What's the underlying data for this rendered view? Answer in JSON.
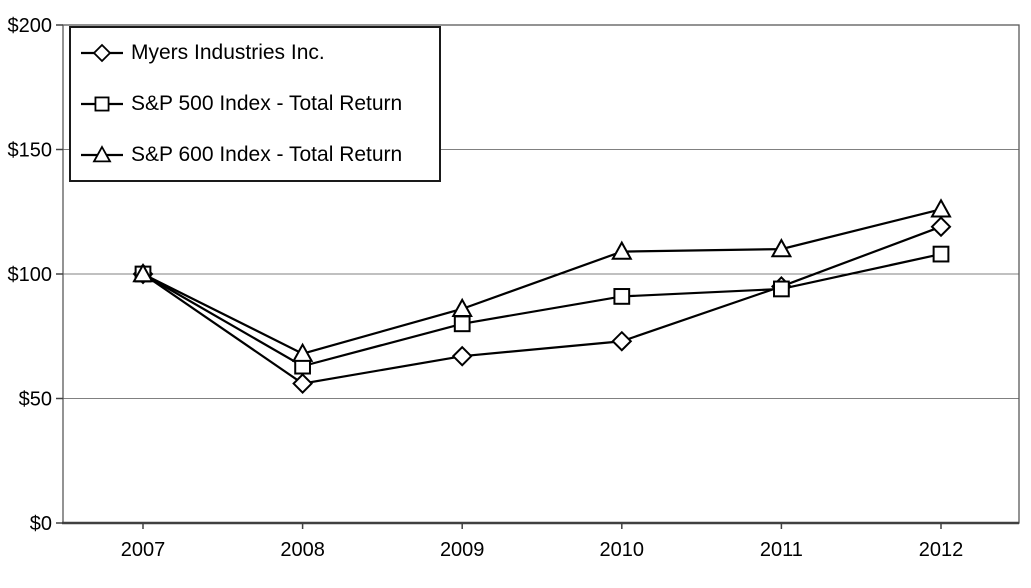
{
  "chart_data": {
    "type": "line",
    "title": "",
    "categories": [
      "2007",
      "2008",
      "2009",
      "2010",
      "2011",
      "2012"
    ],
    "series": [
      {
        "name": "Myers Industries Inc.",
        "marker": "diamond",
        "values": [
          100,
          56,
          67,
          73,
          95,
          119
        ]
      },
      {
        "name": "S&P 500 Index - Total Return",
        "marker": "square",
        "values": [
          100,
          63,
          80,
          91,
          94,
          108
        ]
      },
      {
        "name": "S&P 600 Index - Total Return",
        "marker": "triangle",
        "values": [
          100,
          68,
          86,
          109,
          110,
          126
        ]
      }
    ],
    "y_axis": {
      "min": 0,
      "max": 200,
      "tick_interval": 50,
      "tick_values": [
        0,
        50,
        100,
        150,
        200
      ],
      "tick_labels": [
        "$0",
        "$50",
        "$100",
        "$150",
        "$200"
      ]
    },
    "x_axis": {
      "tick_labels": [
        "2007",
        "2008",
        "2009",
        "2010",
        "2011",
        "2012"
      ]
    },
    "grid": true,
    "legend_position": "top-left",
    "colors": {
      "series_line": "#000000",
      "marker_fill": "#ffffff",
      "grid_line": "#808080",
      "plot_border": "#595959",
      "axis_line": "#404040",
      "text": "#000000",
      "background": "#ffffff"
    }
  }
}
